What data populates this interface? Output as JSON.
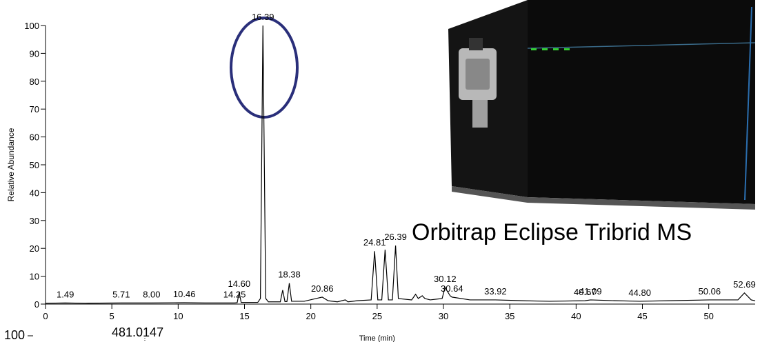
{
  "product_label": "Orbitrap Eclipse Tribrid MS",
  "chart_data": [
    {
      "type": "line",
      "color": "#000000",
      "xlabel": "Time (min)",
      "ylabel": "Relative Abundance",
      "xlim": [
        0,
        53.5
      ],
      "ylim": [
        0,
        100
      ],
      "xticks": [
        0,
        5,
        10,
        15,
        20,
        25,
        30,
        35,
        40,
        45,
        50
      ],
      "yticks": [
        0,
        10,
        20,
        30,
        40,
        50,
        60,
        70,
        80,
        90,
        100
      ],
      "x": [
        0,
        1.49,
        3,
        5.71,
        8,
        10.46,
        12,
        14.25,
        14.45,
        14.6,
        14.75,
        16.0,
        16.2,
        16.39,
        16.6,
        16.8,
        17.7,
        17.88,
        18.05,
        18.2,
        18.38,
        18.55,
        19.5,
        20.4,
        20.86,
        21.3,
        22.0,
        22.6,
        22.8,
        23.5,
        24.55,
        24.81,
        25.05,
        25.35,
        25.6,
        25.85,
        26.15,
        26.39,
        26.6,
        27.6,
        27.9,
        28.1,
        28.4,
        28.6,
        29.0,
        29.9,
        30.12,
        30.5,
        30.64,
        32,
        33.92,
        36,
        38,
        40.67,
        41.09,
        43,
        44.8,
        47,
        50.06,
        52.2,
        52.69,
        53.2,
        53.5
      ],
      "values": [
        0.3,
        0.4,
        0.3,
        0.4,
        0.4,
        0.5,
        0.4,
        0.4,
        0.5,
        4.2,
        0.6,
        0.6,
        2,
        100,
        2,
        0.8,
        0.8,
        5,
        0.9,
        0.9,
        7.5,
        1,
        1,
        2,
        2.5,
        1.2,
        0.8,
        1.5,
        0.8,
        1.2,
        1.5,
        19,
        1.5,
        1.5,
        19.5,
        1.5,
        1.5,
        21,
        2,
        1.5,
        3.5,
        2,
        3,
        2,
        1.5,
        2,
        6,
        3,
        2.5,
        1.5,
        1.5,
        1.2,
        1,
        1.2,
        1.5,
        1.2,
        1,
        1.2,
        1.5,
        1.5,
        4,
        1.5,
        1.2
      ],
      "peak_labels": [
        1.49,
        5.71,
        {
          "value": 8,
          "label": "8.00"
        },
        10.46,
        14.25,
        {
          "value": 14.6,
          "label": "14.60"
        },
        16.39,
        18.38,
        20.86,
        24.81,
        26.39,
        30.12,
        30.64,
        33.92,
        40.67,
        41.09,
        {
          "value": 44.8,
          "label": "44.80"
        },
        50.06,
        52.69
      ]
    },
    {
      "type": "spectrum",
      "yticks": [
        100
      ],
      "annotations": [
        "481.0147"
      ]
    }
  ]
}
